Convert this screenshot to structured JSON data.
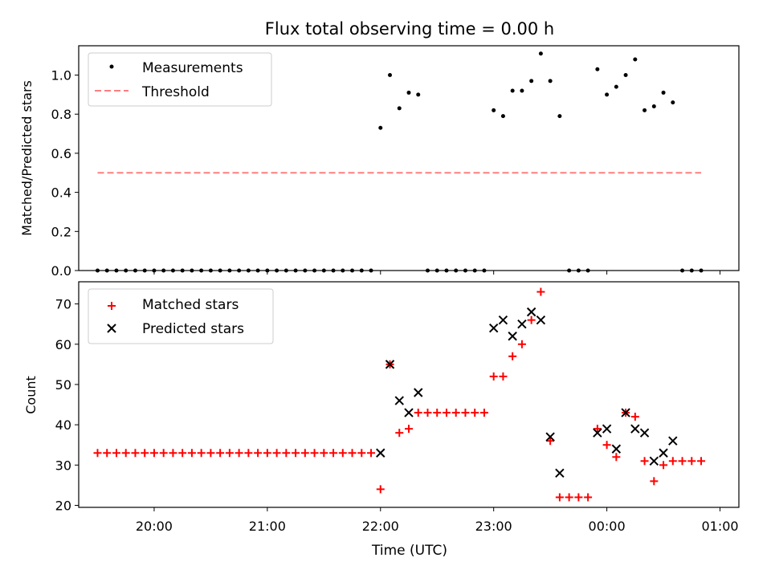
{
  "chart_data": [
    {
      "type": "scatter",
      "title": "Flux total observing time = 0.00 h",
      "ylabel": "Matched/Predicted stars",
      "xlabel": "",
      "ylim": [
        0,
        1.15
      ],
      "yticks": [
        "0.0",
        "0.2",
        "0.4",
        "0.6",
        "0.8",
        "1.0"
      ],
      "grid": false,
      "legend_position": "top-left",
      "colors": {
        "measurements": "#000000",
        "threshold": "#ff7f7f"
      },
      "series": [
        {
          "name": "Measurements",
          "marker": "dot",
          "x": [
            "19:30",
            "19:35",
            "19:40",
            "19:45",
            "19:50",
            "19:55",
            "20:00",
            "20:05",
            "20:10",
            "20:15",
            "20:20",
            "20:25",
            "20:30",
            "20:35",
            "20:40",
            "20:45",
            "20:50",
            "20:55",
            "21:00",
            "21:05",
            "21:10",
            "21:15",
            "21:20",
            "21:25",
            "21:30",
            "21:35",
            "21:40",
            "21:45",
            "21:50",
            "21:55",
            "22:00",
            "22:05",
            "22:10",
            "22:15",
            "22:20",
            "22:25",
            "22:30",
            "22:35",
            "22:40",
            "22:45",
            "22:50",
            "22:55",
            "23:00",
            "23:05",
            "23:10",
            "23:15",
            "23:20",
            "23:25",
            "23:30",
            "23:35",
            "23:40",
            "23:45",
            "23:50",
            "23:55",
            "24:00",
            "24:05",
            "24:10",
            "24:15",
            "24:20",
            "24:25",
            "24:30",
            "24:35",
            "24:40",
            "24:45",
            "24:50"
          ],
          "y": [
            0,
            0,
            0,
            0,
            0,
            0,
            0,
            0,
            0,
            0,
            0,
            0,
            0,
            0,
            0,
            0,
            0,
            0,
            0,
            0,
            0,
            0,
            0,
            0,
            0,
            0,
            0,
            0,
            0,
            0,
            0.73,
            1.0,
            0.83,
            0.91,
            0.9,
            0,
            0,
            0,
            0,
            0,
            0,
            0,
            0.82,
            0.79,
            0.92,
            0.92,
            0.97,
            1.11,
            0.97,
            0.79,
            0,
            0,
            0,
            1.03,
            0.9,
            0.94,
            1.0,
            1.08,
            0.82,
            0.84,
            0.91,
            0.86,
            0,
            0,
            0
          ]
        },
        {
          "name": "Threshold",
          "style": "dashed",
          "x": [
            "19:30",
            "24:50"
          ],
          "y": [
            0.5,
            0.5
          ]
        }
      ]
    },
    {
      "type": "scatter",
      "title": "",
      "ylabel": "Count",
      "xlabel": "Time (UTC)",
      "ylim": [
        19.5,
        75.5
      ],
      "yticks": [
        "20",
        "30",
        "40",
        "50",
        "60",
        "70"
      ],
      "xticks": [
        "20:00",
        "21:00",
        "22:00",
        "23:00",
        "00:00",
        "01:00"
      ],
      "grid": false,
      "legend_position": "top-left",
      "colors": {
        "matched": "#ff0000",
        "predicted": "#000000"
      },
      "series": [
        {
          "name": "Matched stars",
          "marker": "plus",
          "x": [
            "19:30",
            "19:35",
            "19:40",
            "19:45",
            "19:50",
            "19:55",
            "20:00",
            "20:05",
            "20:10",
            "20:15",
            "20:20",
            "20:25",
            "20:30",
            "20:35",
            "20:40",
            "20:45",
            "20:50",
            "20:55",
            "21:00",
            "21:05",
            "21:10",
            "21:15",
            "21:20",
            "21:25",
            "21:30",
            "21:35",
            "21:40",
            "21:45",
            "21:50",
            "21:55",
            "22:00",
            "22:05",
            "22:10",
            "22:15",
            "22:20",
            "22:25",
            "22:30",
            "22:35",
            "22:40",
            "22:45",
            "22:50",
            "22:55",
            "23:00",
            "23:05",
            "23:10",
            "23:15",
            "23:20",
            "23:25",
            "23:30",
            "23:35",
            "23:40",
            "23:45",
            "23:50",
            "23:55",
            "24:00",
            "24:05",
            "24:10",
            "24:15",
            "24:20",
            "24:25",
            "24:30",
            "24:35",
            "24:40",
            "24:45",
            "24:50"
          ],
          "y": [
            33,
            33,
            33,
            33,
            33,
            33,
            33,
            33,
            33,
            33,
            33,
            33,
            33,
            33,
            33,
            33,
            33,
            33,
            33,
            33,
            33,
            33,
            33,
            33,
            33,
            33,
            33,
            33,
            33,
            33,
            24,
            55,
            38,
            39,
            43,
            43,
            43,
            43,
            43,
            43,
            43,
            43,
            52,
            52,
            57,
            60,
            66,
            73,
            36,
            22,
            22,
            22,
            22,
            39,
            35,
            32,
            43,
            42,
            31,
            26,
            30,
            31,
            31,
            31,
            31
          ]
        },
        {
          "name": "Predicted stars",
          "marker": "x",
          "x": [
            "22:00",
            "22:05",
            "22:10",
            "22:15",
            "22:20",
            "23:00",
            "23:05",
            "23:10",
            "23:15",
            "23:20",
            "23:25",
            "23:30",
            "23:35",
            "23:55",
            "24:00",
            "24:05",
            "24:10",
            "24:15",
            "24:20",
            "24:25",
            "24:30",
            "24:35"
          ],
          "y": [
            33,
            55,
            46,
            43,
            48,
            64,
            66,
            62,
            65,
            68,
            66,
            37,
            28,
            38,
            39,
            34,
            43,
            39,
            38,
            31,
            33,
            36
          ]
        }
      ]
    }
  ]
}
